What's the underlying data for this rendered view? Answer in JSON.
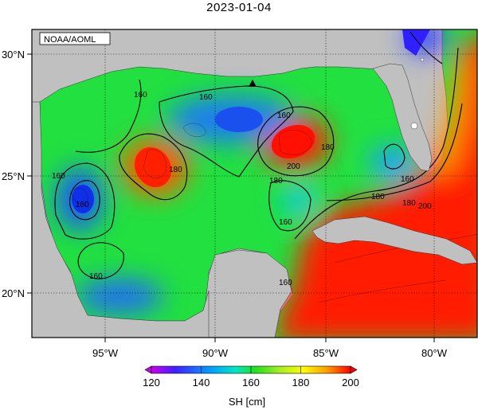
{
  "map": {
    "date": "2023-01-04",
    "credit": "NOAA/AOML",
    "lon_ticks": [
      "95°W",
      "90°W",
      "85°W",
      "80°W"
    ],
    "lat_ticks": [
      "30°N",
      "25°N",
      "20°N"
    ],
    "contour_labels": [
      "160",
      "160",
      "160",
      "160",
      "180",
      "160",
      "160",
      "180",
      "180",
      "200",
      "180",
      "160",
      "180",
      "200",
      "160",
      "160"
    ],
    "colorbar": {
      "ticks": [
        "120",
        "140",
        "160",
        "180",
        "200"
      ],
      "label": "SH [cm]",
      "colors": [
        "#cc00ee",
        "#4020ff",
        "#00a0ff",
        "#00e6c8",
        "#20e020",
        "#a0ee20",
        "#ffff00",
        "#ffa000",
        "#ff0000"
      ]
    },
    "buoy_marker": "triangle-icon"
  }
}
